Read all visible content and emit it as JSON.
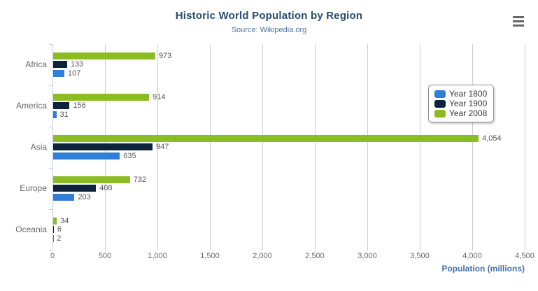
{
  "chart_data": {
    "type": "bar",
    "orientation": "horizontal",
    "title": "Historic World Population by Region",
    "subtitle": "Source: Wikipedia.org",
    "categories": [
      "Africa",
      "America",
      "Asia",
      "Europe",
      "Oceania"
    ],
    "series": [
      {
        "name": "Year 1800",
        "color": "#2f7ed8",
        "values": [
          107,
          31,
          635,
          203,
          2
        ]
      },
      {
        "name": "Year 1900",
        "color": "#0d233a",
        "values": [
          133,
          156,
          947,
          408,
          6
        ]
      },
      {
        "name": "Year 2008",
        "color": "#8bbc21",
        "values": [
          973,
          914,
          4054,
          732,
          34
        ]
      }
    ],
    "bar_display_order_top_to_bottom": [
      "Year 2008",
      "Year 1900",
      "Year 1800"
    ],
    "xlabel": "Population (millions)",
    "ylabel": "",
    "xlim": [
      0,
      4500
    ],
    "tick_interval": 500,
    "x_tick_labels": [
      "0",
      "500",
      "1,000",
      "1,500",
      "2,000",
      "2,500",
      "3,000",
      "3,500",
      "4,000",
      "4,500"
    ],
    "grid": true,
    "data_labels": true,
    "legend_position": "right-middle"
  },
  "toolbar": {
    "context_menu_icon": "hamburger-icon"
  },
  "colors": {
    "title": "#274b6d",
    "subtitle": "#4d759e",
    "grid_line": "#cccccc",
    "axis_line": "#c0d0e0",
    "tick_label": "#666666",
    "category_label": "#666666",
    "data_label": "#555555",
    "axis_title": "#4572a7",
    "legend_border": "#909090",
    "legend_text": "#333333",
    "hamburger_icon": "#666666",
    "background": "#ffffff"
  }
}
